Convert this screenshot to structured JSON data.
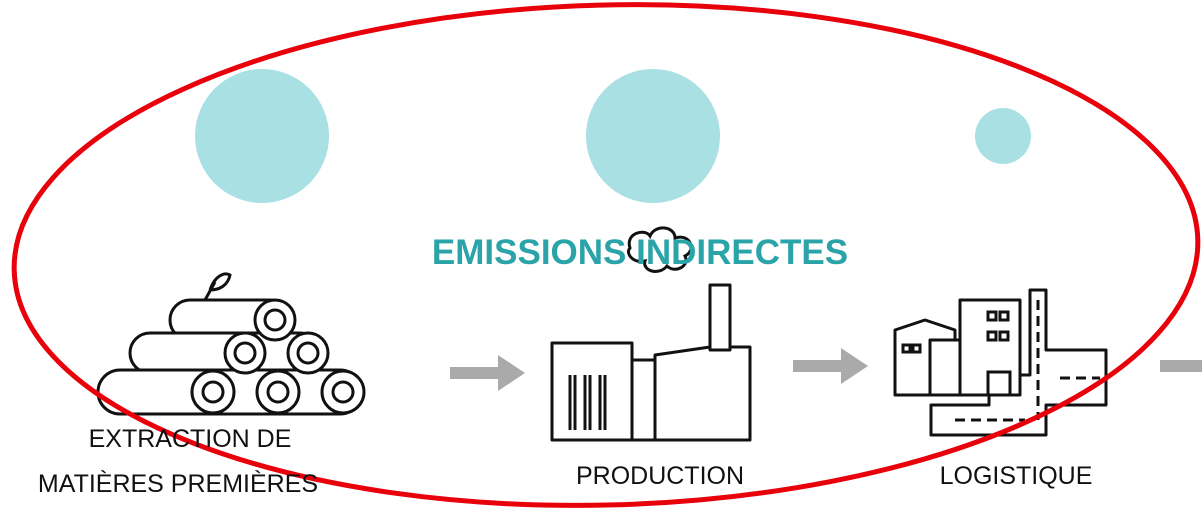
{
  "title": "EMISSIONS INDIRECTES",
  "stages": [
    {
      "lines": [
        "EXTRACTION DE",
        "MATIÈRES PREMIÈRES"
      ]
    },
    {
      "lines": [
        "PRODUCTION"
      ]
    },
    {
      "lines": [
        "LOGISTIQUE"
      ]
    }
  ]
}
